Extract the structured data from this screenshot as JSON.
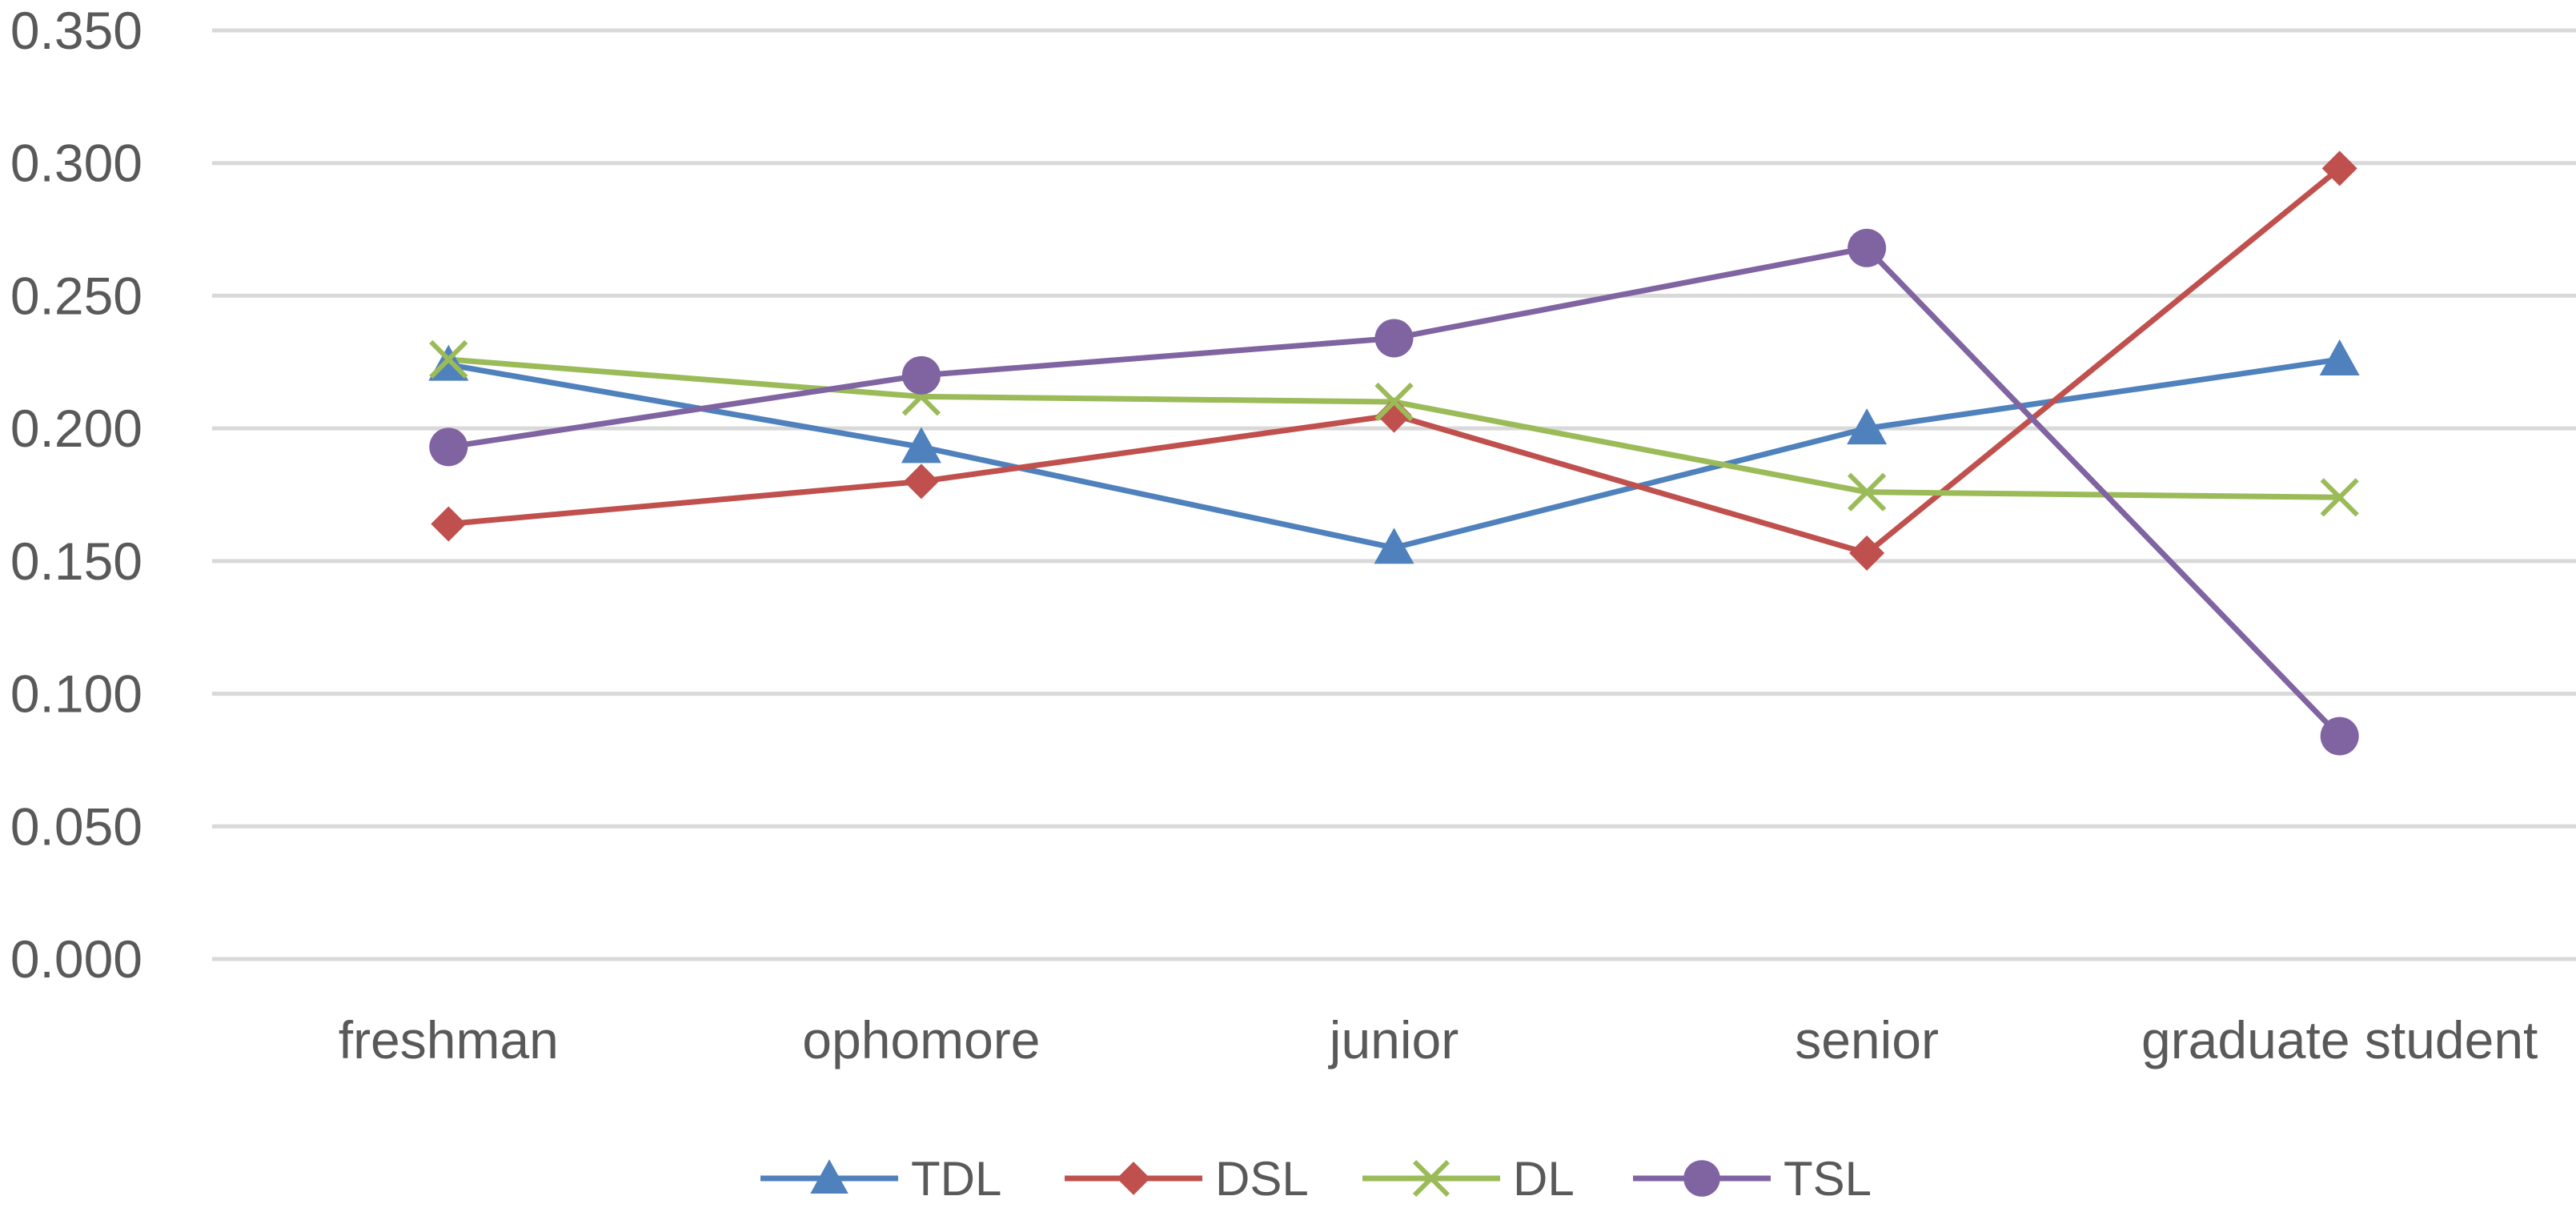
{
  "chart_data": {
    "type": "line",
    "title": "",
    "xlabel": "",
    "ylabel": "",
    "categories": [
      "freshman",
      "ophomore",
      "junior",
      "senior",
      "graduate student"
    ],
    "y_ticks": [
      "0.000",
      "0.050",
      "0.100",
      "0.150",
      "0.200",
      "0.250",
      "0.300",
      "0.350"
    ],
    "ylim": [
      0,
      0.35
    ],
    "grid": true,
    "legend_position": "bottom",
    "series": [
      {
        "name": "TDL",
        "marker": "triangle",
        "color": "#4f81bd",
        "values": [
          0.224,
          0.193,
          0.155,
          0.2,
          0.226
        ]
      },
      {
        "name": "DSL",
        "marker": "diamond",
        "color": "#c0504d",
        "values": [
          0.164,
          0.18,
          0.205,
          0.153,
          0.298
        ]
      },
      {
        "name": "DL",
        "marker": "x",
        "color": "#9bbb59",
        "values": [
          0.226,
          0.212,
          0.21,
          0.176,
          0.174
        ]
      },
      {
        "name": "TSL",
        "marker": "circle",
        "color": "#8064a2",
        "values": [
          0.193,
          0.22,
          0.234,
          0.268,
          0.084
        ]
      }
    ]
  }
}
